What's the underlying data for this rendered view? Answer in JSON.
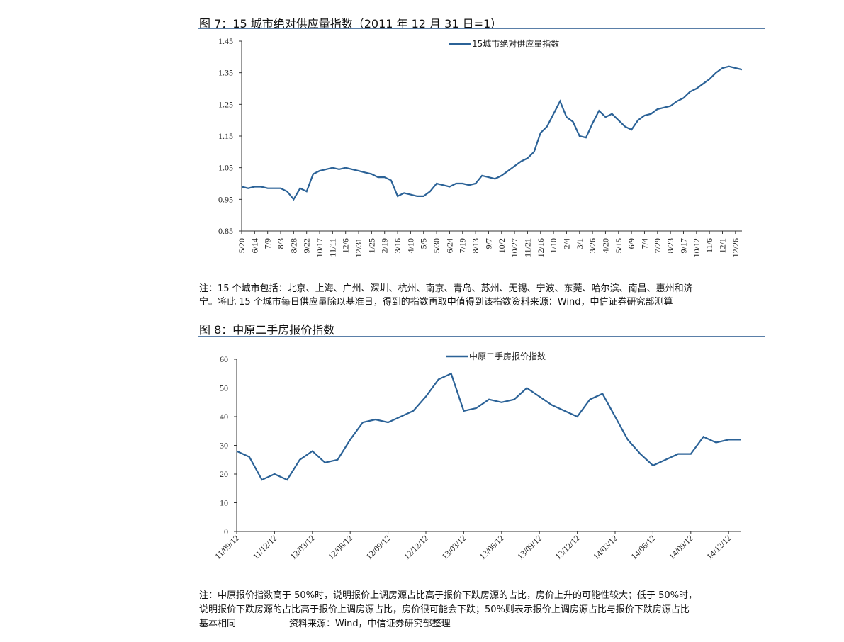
{
  "figure_titles": [
    "图 7：15 城市绝对供应量指数（2011 年 12 月 31 日=1）",
    "图 8：中原二手房报价指数"
  ],
  "notes": [
    [
      "注：15 个城市包括：北京、上海、广州、深圳、杭州、南京、青岛、苏州、无锡、宁波、东莞、哈尔滨、南昌、惠州和济",
      "宁。将此 15 个城市每日供应量除以基准日，得到的指数再取中值得到该指数资料来源：Wind，中信证券研究部测算"
    ],
    [
      "注：中原报价指数高于 50%时，说明报价上调房源占比高于报价下跌房源的占比，房价上升的可能性较大；低于 50%时，",
      "说明报价下跌房源的占比高于报价上调房源占比，房价很可能会下跌；50%则表示报价上调房源占比与报价下跌房源占比",
      "基本相同",
      "资料来源：Wind，中信证券研究部整理"
    ]
  ],
  "chart_data": [
    {
      "type": "line",
      "categories": [
        "5/20",
        null,
        "6/14",
        null,
        "7/9",
        null,
        "8/3",
        null,
        "8/28",
        null,
        "9/22",
        null,
        "10/17",
        null,
        "11/11",
        null,
        "12/6",
        null,
        "12/31",
        null,
        "1/25",
        null,
        "2/19",
        null,
        "3/16",
        null,
        "4/10",
        null,
        "5/5",
        null,
        "5/30",
        null,
        "6/24",
        null,
        "7/19",
        null,
        "8/13",
        null,
        "9/7",
        null,
        "10/2",
        null,
        "10/27",
        null,
        "11/21",
        null,
        "12/16",
        null,
        "1/10",
        null,
        "2/4",
        null,
        "3/1",
        null,
        "3/26",
        null,
        "4/20",
        null,
        "5/15",
        null,
        "6/9",
        null,
        "7/4",
        null,
        "7/29",
        null,
        "8/23",
        null,
        "9/17",
        null,
        "10/12",
        null,
        "11/6",
        null,
        "12/1",
        null,
        "12/26",
        null
      ],
      "series": [
        {
          "name": "15城市绝对供应量指数",
          "color": "#2b6297",
          "values": [
            0.99,
            0.985,
            0.99,
            0.99,
            0.985,
            0.985,
            0.985,
            0.975,
            0.95,
            0.985,
            0.975,
            1.03,
            1.04,
            1.045,
            1.05,
            1.045,
            1.05,
            1.045,
            1.04,
            1.035,
            1.03,
            1.02,
            1.02,
            1.01,
            0.96,
            0.97,
            0.965,
            0.96,
            0.96,
            0.975,
            1.0,
            0.995,
            0.99,
            1.0,
            1.0,
            0.995,
            1.0,
            1.025,
            1.02,
            1.015,
            1.025,
            1.04,
            1.055,
            1.07,
            1.08,
            1.1,
            1.16,
            1.18,
            1.22,
            1.26,
            1.21,
            1.195,
            1.15,
            1.145,
            1.19,
            1.23,
            1.21,
            1.22,
            1.2,
            1.18,
            1.17,
            1.2,
            1.215,
            1.22,
            1.235,
            1.24,
            1.245,
            1.26,
            1.27,
            1.29,
            1.3,
            1.315,
            1.33,
            1.35,
            1.365,
            1.37,
            1.365,
            1.36
          ]
        }
      ],
      "ylim": [
        0.85,
        1.45
      ],
      "yticks": [
        0.85,
        0.95,
        1.05,
        1.15,
        1.25,
        1.35,
        1.45
      ],
      "legend": "top"
    },
    {
      "type": "line",
      "categories": [
        "11/09/12",
        null,
        null,
        "11/12/12",
        null,
        null,
        "12/03/12",
        null,
        null,
        "12/06/12",
        null,
        null,
        "12/09/12",
        null,
        null,
        "12/12/12",
        null,
        null,
        "13/03/12",
        null,
        null,
        "13/06/12",
        null,
        null,
        "13/09/12",
        null,
        null,
        "13/12/12",
        null,
        null,
        "14/03/12",
        null,
        null,
        "14/06/12",
        null,
        null,
        "14/09/12",
        null,
        null,
        "14/12/12",
        null
      ],
      "series": [
        {
          "name": "中原二手房报价指数",
          "color": "#2b6297",
          "values": [
            28,
            26,
            18,
            20,
            18,
            25,
            28,
            24,
            25,
            32,
            38,
            39,
            38,
            40,
            42,
            47,
            53,
            55,
            42,
            43,
            46,
            45,
            46,
            50,
            47,
            44,
            42,
            40,
            46,
            48,
            40,
            32,
            27,
            23,
            25,
            27,
            27,
            33,
            31,
            32,
            32
          ]
        }
      ],
      "ylim": [
        0,
        60
      ],
      "yticks": [
        0,
        10,
        20,
        30,
        40,
        50,
        60
      ],
      "legend": "top"
    }
  ]
}
